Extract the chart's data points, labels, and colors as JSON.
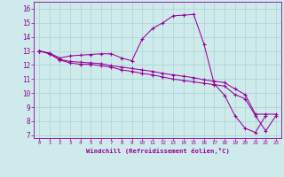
{
  "xlabel": "Windchill (Refroidissement éolien,°C)",
  "bg_color": "#ceeaea",
  "line_color": "#990099",
  "grid_color": "#aad4d4",
  "xlim": [
    -0.5,
    23.5
  ],
  "ylim": [
    6.8,
    16.5
  ],
  "yticks": [
    7,
    8,
    9,
    10,
    11,
    12,
    13,
    14,
    15,
    16
  ],
  "xticks": [
    0,
    1,
    2,
    3,
    4,
    5,
    6,
    7,
    8,
    9,
    10,
    11,
    12,
    13,
    14,
    15,
    16,
    17,
    18,
    19,
    20,
    21,
    22,
    23
  ],
  "series": [
    {
      "x": [
        0,
        1,
        2,
        3,
        4,
        5,
        6,
        7,
        8,
        9,
        10,
        11,
        12,
        13,
        14,
        15,
        16,
        17,
        18,
        19,
        20,
        21,
        22
      ],
      "y": [
        13,
        12.85,
        12.5,
        12.65,
        12.7,
        12.75,
        12.8,
        12.8,
        12.5,
        12.3,
        13.85,
        14.6,
        15.0,
        15.5,
        15.55,
        15.6,
        13.5,
        10.65,
        9.85,
        8.4,
        7.5,
        7.2,
        8.4
      ]
    },
    {
      "x": [
        0,
        1,
        2,
        3,
        4,
        5,
        6,
        7,
        8,
        9,
        10,
        11,
        12,
        13,
        14,
        15,
        16,
        17,
        18,
        19,
        20,
        21,
        22,
        23
      ],
      "y": [
        13,
        12.8,
        12.4,
        12.25,
        12.2,
        12.15,
        12.1,
        11.95,
        11.85,
        11.75,
        11.65,
        11.55,
        11.4,
        11.3,
        11.2,
        11.1,
        10.95,
        10.85,
        10.75,
        10.3,
        9.9,
        8.5,
        8.5,
        8.5
      ]
    },
    {
      "x": [
        0,
        1,
        2,
        3,
        4,
        5,
        6,
        7,
        8,
        9,
        10,
        11,
        12,
        13,
        14,
        15,
        16,
        17,
        18,
        19,
        20,
        21,
        22,
        23
      ],
      "y": [
        13,
        12.8,
        12.35,
        12.15,
        12.05,
        12.05,
        11.95,
        11.85,
        11.65,
        11.55,
        11.4,
        11.3,
        11.15,
        11.0,
        10.9,
        10.8,
        10.7,
        10.6,
        10.5,
        9.9,
        9.6,
        8.4,
        7.3,
        8.4
      ]
    }
  ]
}
